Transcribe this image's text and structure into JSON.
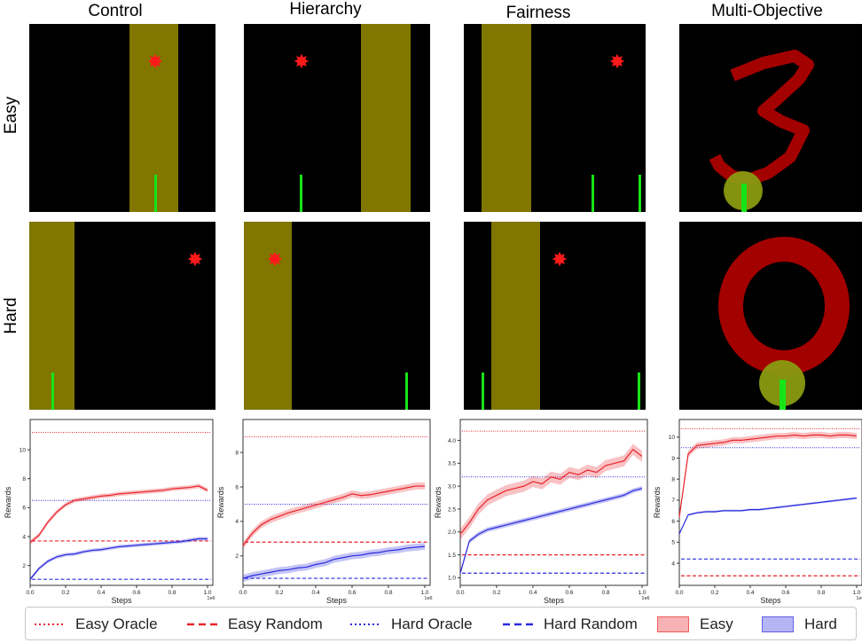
{
  "columns": [
    "Control",
    "Hierarchy",
    "Fairness",
    "Multi-Objective"
  ],
  "rows": [
    "Easy",
    "Hard"
  ],
  "colors": {
    "easy": "#e8232a",
    "hard": "#2b2bde",
    "band": "#807600",
    "agent": "#17e417",
    "target": "#ff1a1a",
    "digit": "#a30000"
  },
  "legend": {
    "easy_oracle": "Easy Oracle",
    "easy_random": "Easy Random",
    "hard_oracle": "Hard Oracle",
    "hard_random": "Hard Random",
    "easy": "Easy",
    "hard": "Hard"
  },
  "chart_data": [
    {
      "type": "line",
      "panel": "Control",
      "xlabel": "Steps",
      "ylabel": "Rewards",
      "x_exponent": "1e6",
      "xlim": [
        0,
        1.0
      ],
      "ylim": [
        1.0,
        11.6
      ],
      "xticks": [
        0.0,
        0.2,
        0.4,
        0.6,
        0.8,
        1.0
      ],
      "xtick_labels": [
        "0.0",
        "0.2",
        "0.4",
        "0.6",
        "0.8",
        "1.0"
      ],
      "yticks": [
        2,
        4,
        6,
        8,
        10
      ],
      "ytick_labels": [
        "2",
        "4",
        "6",
        "8",
        "10"
      ],
      "x": [
        0.0,
        0.05,
        0.1,
        0.15,
        0.2,
        0.25,
        0.3,
        0.35,
        0.4,
        0.45,
        0.5,
        0.55,
        0.6,
        0.65,
        0.7,
        0.75,
        0.8,
        0.85,
        0.9,
        0.95,
        1.0
      ],
      "series": [
        {
          "name": "Easy",
          "values": [
            3.6,
            4.1,
            5.0,
            5.7,
            6.2,
            6.5,
            6.6,
            6.7,
            6.8,
            6.85,
            6.95,
            7.0,
            7.05,
            7.1,
            7.15,
            7.2,
            7.3,
            7.35,
            7.4,
            7.5,
            7.2
          ],
          "band": 0.15
        },
        {
          "name": "Hard",
          "values": [
            1.05,
            1.8,
            2.3,
            2.6,
            2.75,
            2.8,
            2.95,
            3.05,
            3.1,
            3.2,
            3.3,
            3.35,
            3.4,
            3.45,
            3.5,
            3.55,
            3.6,
            3.65,
            3.75,
            3.85,
            3.85
          ],
          "band": 0.12
        }
      ],
      "easy_oracle": 11.2,
      "easy_random": 3.7,
      "hard_oracle": 6.5,
      "hard_random": 1.05
    },
    {
      "type": "line",
      "panel": "Hierarchy",
      "xlabel": "Steps",
      "ylabel": "Rewards",
      "x_exponent": "1e6",
      "xlim": [
        0,
        1.0
      ],
      "ylim": [
        0.6,
        9.5
      ],
      "xticks": [
        0.0,
        0.2,
        0.4,
        0.6,
        0.8,
        1.0
      ],
      "xtick_labels": [
        "0.0",
        "0.2",
        "0.4",
        "0.6",
        "0.8",
        "1.0"
      ],
      "yticks": [
        2,
        4,
        6,
        8
      ],
      "ytick_labels": [
        "2",
        "4",
        "6",
        "8"
      ],
      "x": [
        0.0,
        0.05,
        0.1,
        0.15,
        0.2,
        0.25,
        0.3,
        0.35,
        0.4,
        0.45,
        0.5,
        0.55,
        0.6,
        0.65,
        0.7,
        0.75,
        0.8,
        0.85,
        0.9,
        0.95,
        1.0
      ],
      "series": [
        {
          "name": "Easy",
          "values": [
            2.6,
            3.3,
            3.8,
            4.1,
            4.3,
            4.5,
            4.65,
            4.8,
            4.95,
            5.1,
            5.25,
            5.4,
            5.6,
            5.5,
            5.55,
            5.65,
            5.75,
            5.85,
            5.95,
            6.05,
            6.05
          ],
          "band": 0.2
        },
        {
          "name": "Hard",
          "values": [
            0.7,
            0.85,
            0.95,
            1.05,
            1.15,
            1.2,
            1.3,
            1.35,
            1.5,
            1.6,
            1.8,
            1.9,
            2.0,
            2.05,
            2.15,
            2.2,
            2.3,
            2.35,
            2.45,
            2.5,
            2.55
          ],
          "band": 0.2
        }
      ],
      "easy_oracle": 8.9,
      "easy_random": 2.8,
      "hard_oracle": 5.0,
      "hard_random": 0.7
    },
    {
      "type": "line",
      "panel": "Fairness",
      "xlabel": "Steps",
      "ylabel": "Rewards",
      "x_exponent": "1e6",
      "xlim": [
        0,
        1.0
      ],
      "ylim": [
        0.95,
        4.3
      ],
      "xticks": [
        0.0,
        0.2,
        0.4,
        0.6,
        0.8,
        1.0
      ],
      "xtick_labels": [
        "0.0",
        "0.2",
        "0.4",
        "0.6",
        "0.8",
        "1.0"
      ],
      "yticks": [
        1.0,
        1.5,
        2.0,
        2.5,
        3.0,
        3.5,
        4.0
      ],
      "ytick_labels": [
        "1.0",
        "1.5",
        "2.0",
        "2.5",
        "3.0",
        "3.5",
        "4.0"
      ],
      "x": [
        0.0,
        0.05,
        0.1,
        0.15,
        0.2,
        0.25,
        0.3,
        0.35,
        0.4,
        0.45,
        0.5,
        0.55,
        0.6,
        0.65,
        0.7,
        0.75,
        0.8,
        0.85,
        0.9,
        0.95,
        1.0
      ],
      "series": [
        {
          "name": "Easy",
          "values": [
            1.95,
            2.2,
            2.5,
            2.7,
            2.8,
            2.9,
            2.95,
            3.0,
            3.1,
            3.05,
            3.2,
            3.15,
            3.3,
            3.25,
            3.35,
            3.3,
            3.45,
            3.5,
            3.55,
            3.8,
            3.65
          ],
          "band": 0.12
        },
        {
          "name": "Hard",
          "values": [
            1.1,
            1.8,
            1.95,
            2.05,
            2.1,
            2.15,
            2.2,
            2.25,
            2.3,
            2.35,
            2.4,
            2.45,
            2.5,
            2.55,
            2.6,
            2.65,
            2.7,
            2.75,
            2.8,
            2.9,
            2.95
          ],
          "band": 0.05
        }
      ],
      "easy_oracle": 4.2,
      "easy_random": 1.5,
      "hard_oracle": 3.2,
      "hard_random": 1.1
    },
    {
      "type": "line",
      "panel": "Multi-Objective",
      "xlabel": "Steps",
      "ylabel": "Rewards",
      "x_exponent": "1e6",
      "xlim": [
        0,
        1.0
      ],
      "ylim": [
        3.2,
        10.5
      ],
      "xticks": [
        0.0,
        0.2,
        0.4,
        0.6,
        0.8,
        1.0
      ],
      "xtick_labels": [
        "0.0",
        "0.2",
        "0.4",
        "0.6",
        "0.8",
        "1.0"
      ],
      "yticks": [
        4,
        5,
        6,
        7,
        8,
        9,
        10
      ],
      "ytick_labels": [
        "4",
        "5",
        "6",
        "7",
        "8",
        "9",
        "10"
      ],
      "x": [
        0.0,
        0.05,
        0.1,
        0.15,
        0.2,
        0.25,
        0.3,
        0.35,
        0.4,
        0.45,
        0.5,
        0.55,
        0.6,
        0.65,
        0.7,
        0.75,
        0.8,
        0.85,
        0.9,
        0.95,
        1.0
      ],
      "series": [
        {
          "name": "Easy",
          "values": [
            6.2,
            9.2,
            9.6,
            9.65,
            9.7,
            9.75,
            9.85,
            9.85,
            9.9,
            9.95,
            10.0,
            10.05,
            10.05,
            10.1,
            10.05,
            10.1,
            10.1,
            10.05,
            10.1,
            10.1,
            10.05
          ],
          "band": 0.15
        },
        {
          "name": "Hard",
          "values": [
            5.4,
            6.3,
            6.4,
            6.45,
            6.45,
            6.5,
            6.5,
            6.5,
            6.55,
            6.55,
            6.6,
            6.65,
            6.7,
            6.75,
            6.8,
            6.85,
            6.9,
            6.95,
            7.0,
            7.05,
            7.1
          ],
          "band": 0.05
        }
      ],
      "easy_oracle": 10.4,
      "easy_random": 3.4,
      "hard_oracle": 9.5,
      "hard_random": 4.2
    }
  ]
}
